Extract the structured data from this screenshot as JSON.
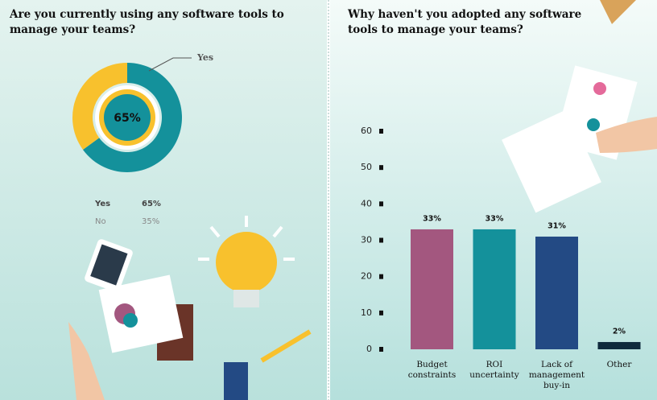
{
  "chart_data": [
    {
      "type": "donut",
      "title": "Are you currently using any software tools to manage your teams?",
      "categories": [
        "Yes",
        "No"
      ],
      "values": [
        65,
        35
      ],
      "value_labels": [
        "65%",
        "35%"
      ],
      "colors": [
        "#14919b",
        "#f8c12d"
      ]
    },
    {
      "type": "bar",
      "title": "Why haven't you adopted any software tools to manage your teams?",
      "categories": [
        "Budget constraints",
        "ROI uncertainty",
        "Lack of management buy-in",
        "Other"
      ],
      "values": [
        33,
        33,
        31,
        2
      ],
      "value_labels": [
        "33%",
        "33%",
        "31%",
        "2%"
      ],
      "colors": [
        "#a3577f",
        "#14919b",
        "#234a84",
        "#0f2a3c"
      ],
      "ylim": [
        0,
        60
      ],
      "yticks": [
        0,
        10,
        20,
        30,
        40,
        50,
        60
      ]
    }
  ]
}
